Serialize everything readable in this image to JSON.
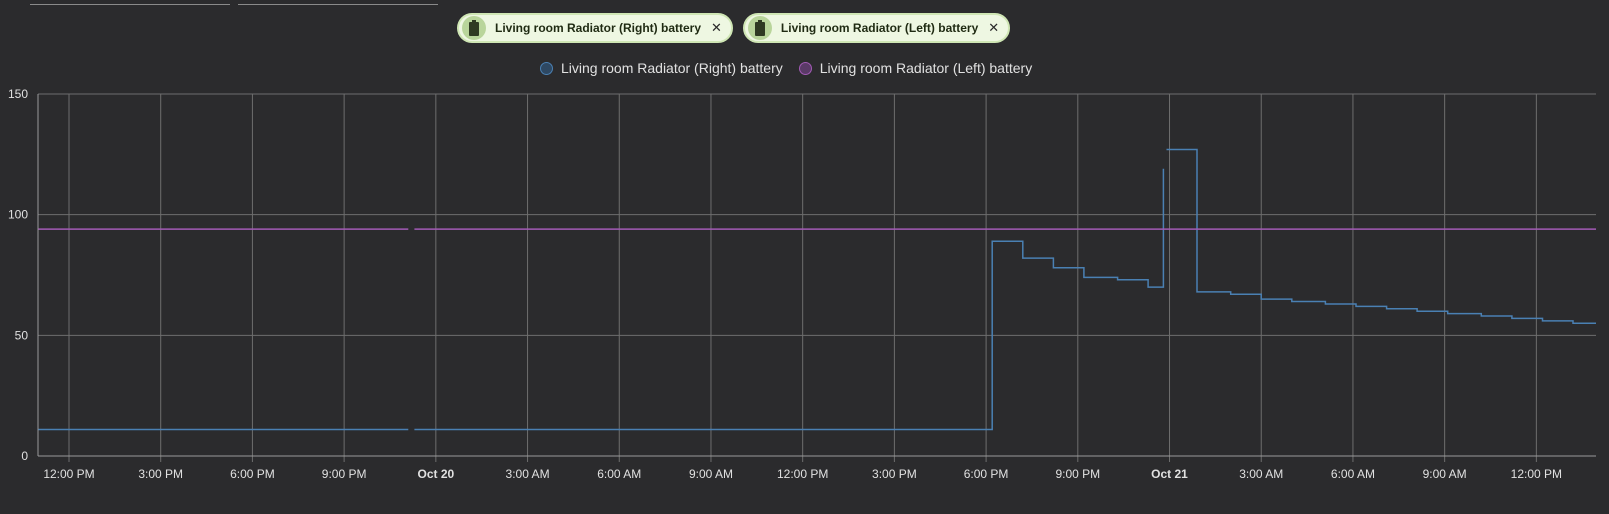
{
  "chips": [
    {
      "label": "Living room Radiator (Right) battery",
      "icon": "battery-icon",
      "close": "✕"
    },
    {
      "label": "Living room Radiator (Left) battery",
      "icon": "battery-icon",
      "close": "✕"
    }
  ],
  "legend": [
    {
      "label": "Living room Radiator (Right) battery"
    },
    {
      "label": "Living room Radiator (Left) battery"
    }
  ],
  "colors": {
    "background": "#2b2b2d",
    "grid": "#6e6e6e",
    "right_series": "#4a80b3",
    "left_series": "#a25ab5",
    "chip_bg": "#eef7e2",
    "chip_border": "#cfe6b4"
  },
  "chart_data": {
    "type": "line",
    "x_unit": "hours from 12:00 PM Oct 19",
    "xlim": [
      -1,
      48.2
    ],
    "ylim": [
      0,
      150
    ],
    "yticks": [
      0,
      50,
      100,
      150
    ],
    "grid": true,
    "legend_position": "top",
    "xticks": [
      {
        "x": 0,
        "label": "12:00 PM",
        "bold": false
      },
      {
        "x": 3,
        "label": "3:00 PM",
        "bold": false
      },
      {
        "x": 6,
        "label": "6:00 PM",
        "bold": false
      },
      {
        "x": 9,
        "label": "9:00 PM",
        "bold": false
      },
      {
        "x": 12,
        "label": "Oct 20",
        "bold": true
      },
      {
        "x": 15,
        "label": "3:00 AM",
        "bold": false
      },
      {
        "x": 18,
        "label": "6:00 AM",
        "bold": false
      },
      {
        "x": 21,
        "label": "9:00 AM",
        "bold": false
      },
      {
        "x": 24,
        "label": "12:00 PM",
        "bold": false
      },
      {
        "x": 27,
        "label": "3:00 PM",
        "bold": false
      },
      {
        "x": 30,
        "label": "6:00 PM",
        "bold": false
      },
      {
        "x": 33,
        "label": "9:00 PM",
        "bold": false
      },
      {
        "x": 36,
        "label": "Oct 21",
        "bold": true
      },
      {
        "x": 39,
        "label": "3:00 AM",
        "bold": false
      },
      {
        "x": 42,
        "label": "6:00 AM",
        "bold": false
      },
      {
        "x": 45,
        "label": "9:00 AM",
        "bold": false
      },
      {
        "x": 48,
        "label": "12:00 PM",
        "bold": false
      }
    ],
    "series": [
      {
        "name": "Living room Radiator (Right) battery",
        "step": true,
        "segments": [
          [
            [
              -1,
              11
            ],
            [
              11.1,
              11
            ]
          ],
          [
            [
              11.3,
              11
            ],
            [
              30.2,
              11
            ],
            [
              30.2,
              89
            ],
            [
              31.2,
              89
            ],
            [
              31.2,
              82
            ],
            [
              32.2,
              82
            ],
            [
              32.2,
              78
            ],
            [
              33.2,
              78
            ],
            [
              33.2,
              74
            ],
            [
              34.3,
              74
            ],
            [
              34.3,
              73
            ],
            [
              35.3,
              73
            ],
            [
              35.3,
              70
            ],
            [
              35.8,
              70
            ],
            [
              35.8,
              119
            ]
          ],
          [
            [
              35.9,
              127
            ],
            [
              36.9,
              127
            ],
            [
              36.9,
              68
            ],
            [
              38,
              68
            ],
            [
              38,
              67
            ],
            [
              39,
              67
            ],
            [
              39,
              65
            ],
            [
              40,
              65
            ],
            [
              40,
              64
            ],
            [
              41.1,
              64
            ],
            [
              41.1,
              63
            ],
            [
              42.1,
              63
            ],
            [
              42.1,
              62
            ],
            [
              43.1,
              62
            ],
            [
              43.1,
              61
            ],
            [
              44.1,
              61
            ],
            [
              44.1,
              60
            ],
            [
              45.1,
              60
            ],
            [
              45.1,
              59
            ],
            [
              46.2,
              59
            ],
            [
              46.2,
              58
            ],
            [
              47.2,
              58
            ],
            [
              47.2,
              57
            ],
            [
              48.2,
              57
            ],
            [
              48.2,
              56
            ],
            [
              49.2,
              56
            ],
            [
              49.2,
              55
            ],
            [
              50.2,
              55
            ]
          ]
        ]
      },
      {
        "name": "Living room Radiator (Left) battery",
        "step": true,
        "segments": [
          [
            [
              -1,
              94
            ],
            [
              11.1,
              94
            ]
          ],
          [
            [
              11.3,
              94
            ],
            [
              50.2,
              94
            ]
          ]
        ]
      }
    ]
  }
}
